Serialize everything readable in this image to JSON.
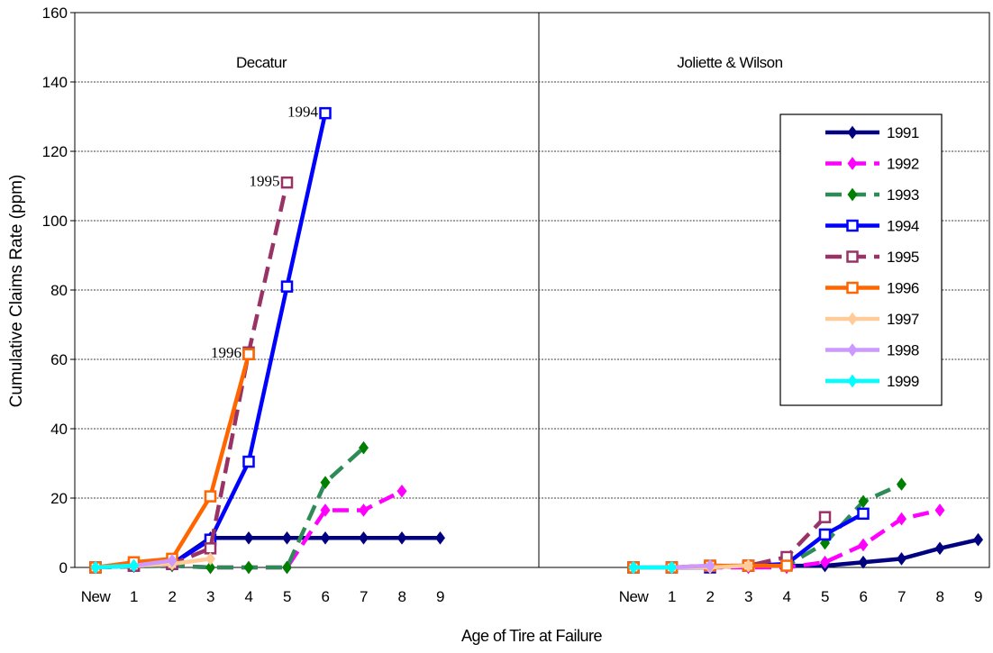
{
  "chart_data": {
    "type": "line",
    "ylabel": "Cumulative Claims Rate (ppm)",
    "xlabel": "Age of Tire at Failure",
    "ylim": [
      0,
      160
    ],
    "yticks": [
      0,
      20,
      40,
      60,
      80,
      100,
      120,
      140,
      160
    ],
    "categories": [
      "New",
      "1",
      "2",
      "3",
      "4",
      "5",
      "6",
      "7",
      "8",
      "9"
    ],
    "grid": true,
    "legend_position": "right, inside second panel",
    "panels": [
      {
        "title": "Decatur",
        "annotations": [
          {
            "text": "1994",
            "series": "1994",
            "x": "6"
          },
          {
            "text": "1995",
            "series": "1995",
            "x": "5"
          },
          {
            "text": "1996",
            "series": "1996",
            "x": "4"
          }
        ],
        "series": [
          {
            "name": "1991",
            "values": [
              0,
              0.5,
              1,
              8.5,
              8.5,
              8.5,
              8.5,
              8.5,
              8.5,
              8.5
            ]
          },
          {
            "name": "1992",
            "values": [
              0,
              0.3,
              0.5,
              0,
              0,
              0,
              16.5,
              16.5,
              22,
              null
            ]
          },
          {
            "name": "1993",
            "values": [
              0,
              0.3,
              0.5,
              0,
              0,
              0,
              24.5,
              34.5,
              null,
              null
            ]
          },
          {
            "name": "1994",
            "values": [
              0,
              0.5,
              1,
              8,
              30.5,
              81,
              131,
              null,
              null,
              null
            ]
          },
          {
            "name": "1995",
            "values": [
              0,
              0.5,
              1,
              5.5,
              62,
              111,
              null,
              null,
              null,
              null
            ]
          },
          {
            "name": "1996",
            "values": [
              0,
              1.5,
              2.5,
              20.5,
              61.5,
              null,
              null,
              null,
              null,
              null
            ]
          },
          {
            "name": "1997",
            "values": [
              0,
              0.5,
              1,
              2.5,
              null,
              null,
              null,
              null,
              null,
              null
            ]
          },
          {
            "name": "1998",
            "values": [
              0,
              0.5,
              2,
              null,
              null,
              null,
              null,
              null,
              null,
              null
            ]
          },
          {
            "name": "1999",
            "values": [
              0,
              0.5,
              null,
              null,
              null,
              null,
              null,
              null,
              null,
              null
            ]
          }
        ]
      },
      {
        "title": "Joliette & Wilson",
        "series": [
          {
            "name": "1991",
            "values": [
              0,
              0,
              0,
              0.5,
              0.5,
              0.5,
              1.5,
              2.5,
              5.5,
              8
            ]
          },
          {
            "name": "1992",
            "values": [
              0,
              0,
              0,
              0,
              0,
              1.5,
              6.5,
              14,
              16.5,
              null
            ]
          },
          {
            "name": "1993",
            "values": [
              0,
              0,
              0,
              0.5,
              0.5,
              7,
              19,
              24,
              null,
              null
            ]
          },
          {
            "name": "1994",
            "values": [
              0,
              0,
              0,
              0.5,
              1,
              9.5,
              15.5,
              null,
              null,
              null
            ]
          },
          {
            "name": "1995",
            "values": [
              0,
              0,
              0.5,
              0.5,
              3,
              14.5,
              null,
              null,
              null,
              null
            ]
          },
          {
            "name": "1996",
            "values": [
              0,
              0,
              0.5,
              0.5,
              0.5,
              null,
              null,
              null,
              null,
              null
            ]
          },
          {
            "name": "1997",
            "values": [
              0,
              0,
              0,
              0.5,
              null,
              null,
              null,
              null,
              null,
              null
            ]
          },
          {
            "name": "1998",
            "values": [
              0,
              0,
              0.5,
              null,
              null,
              null,
              null,
              null,
              null,
              null
            ]
          },
          {
            "name": "1999",
            "values": [
              0,
              0,
              null,
              null,
              null,
              null,
              null,
              null,
              null,
              null
            ]
          }
        ]
      }
    ],
    "series_styles": [
      {
        "name": "1991",
        "color": "#000080",
        "dash": "solid",
        "marker": "diamond"
      },
      {
        "name": "1992",
        "color": "#ff00ff",
        "dash": "dashed",
        "marker": "diamond"
      },
      {
        "name": "1993",
        "color": "#2e8b57",
        "dash": "dashed",
        "marker": "diamond",
        "marker_color": "#008000"
      },
      {
        "name": "1994",
        "color": "#0000ff",
        "dash": "solid",
        "marker": "square-open"
      },
      {
        "name": "1995",
        "color": "#993366",
        "dash": "dashed",
        "marker": "square-open"
      },
      {
        "name": "1996",
        "color": "#ff6600",
        "dash": "solid",
        "marker": "square-open"
      },
      {
        "name": "1997",
        "color": "#ffcc99",
        "dash": "solid",
        "marker": "diamond"
      },
      {
        "name": "1998",
        "color": "#cc99ff",
        "dash": "solid",
        "marker": "diamond"
      },
      {
        "name": "1999",
        "color": "#00ffff",
        "dash": "solid",
        "marker": "diamond"
      }
    ]
  }
}
